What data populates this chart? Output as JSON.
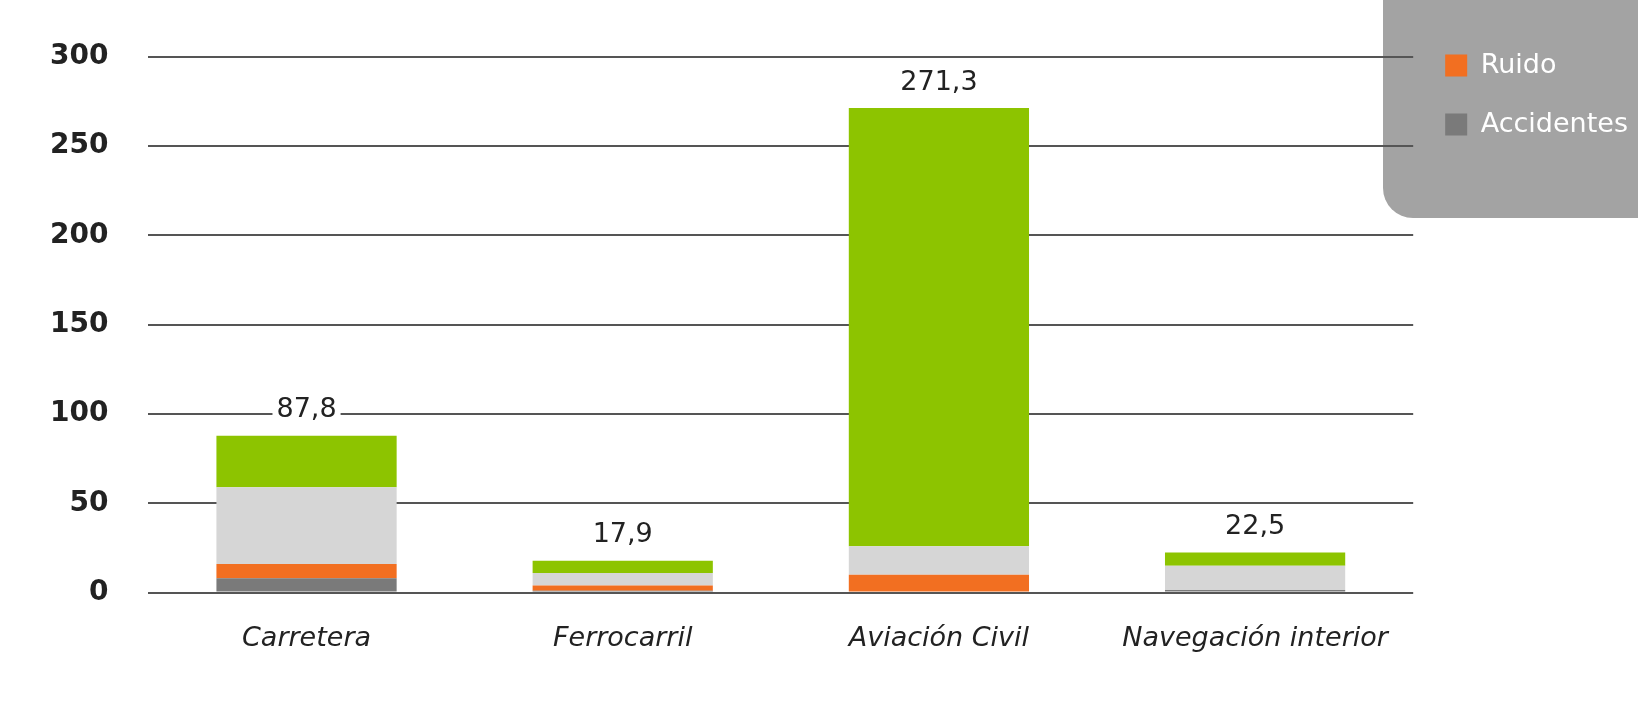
{
  "chart_data": {
    "type": "bar",
    "stacked": true,
    "categories": [
      "Carretera",
      "Ferrocarril",
      "Aviación Civil",
      "Navegación interior"
    ],
    "series": [
      {
        "name": "Accidentes",
        "color": "#7a7a7a",
        "values": [
          8,
          1,
          0,
          1.5
        ]
      },
      {
        "name": "Ruido",
        "color": "#f26f21",
        "values": [
          8,
          3,
          10,
          0
        ]
      },
      {
        "color": "#d6d6d6",
        "values": [
          43,
          7,
          16,
          13.5
        ]
      },
      {
        "color": "#8dc400",
        "values": [
          28.8,
          6.9,
          245.3,
          7.5
        ]
      }
    ],
    "totals": [
      "87,8",
      "17,9",
      "271,3",
      "22,5"
    ],
    "ylim": [
      0,
      300
    ],
    "yticks": [
      0,
      50,
      100,
      150,
      200,
      250,
      300
    ],
    "grid": "y",
    "legend": "top right"
  }
}
